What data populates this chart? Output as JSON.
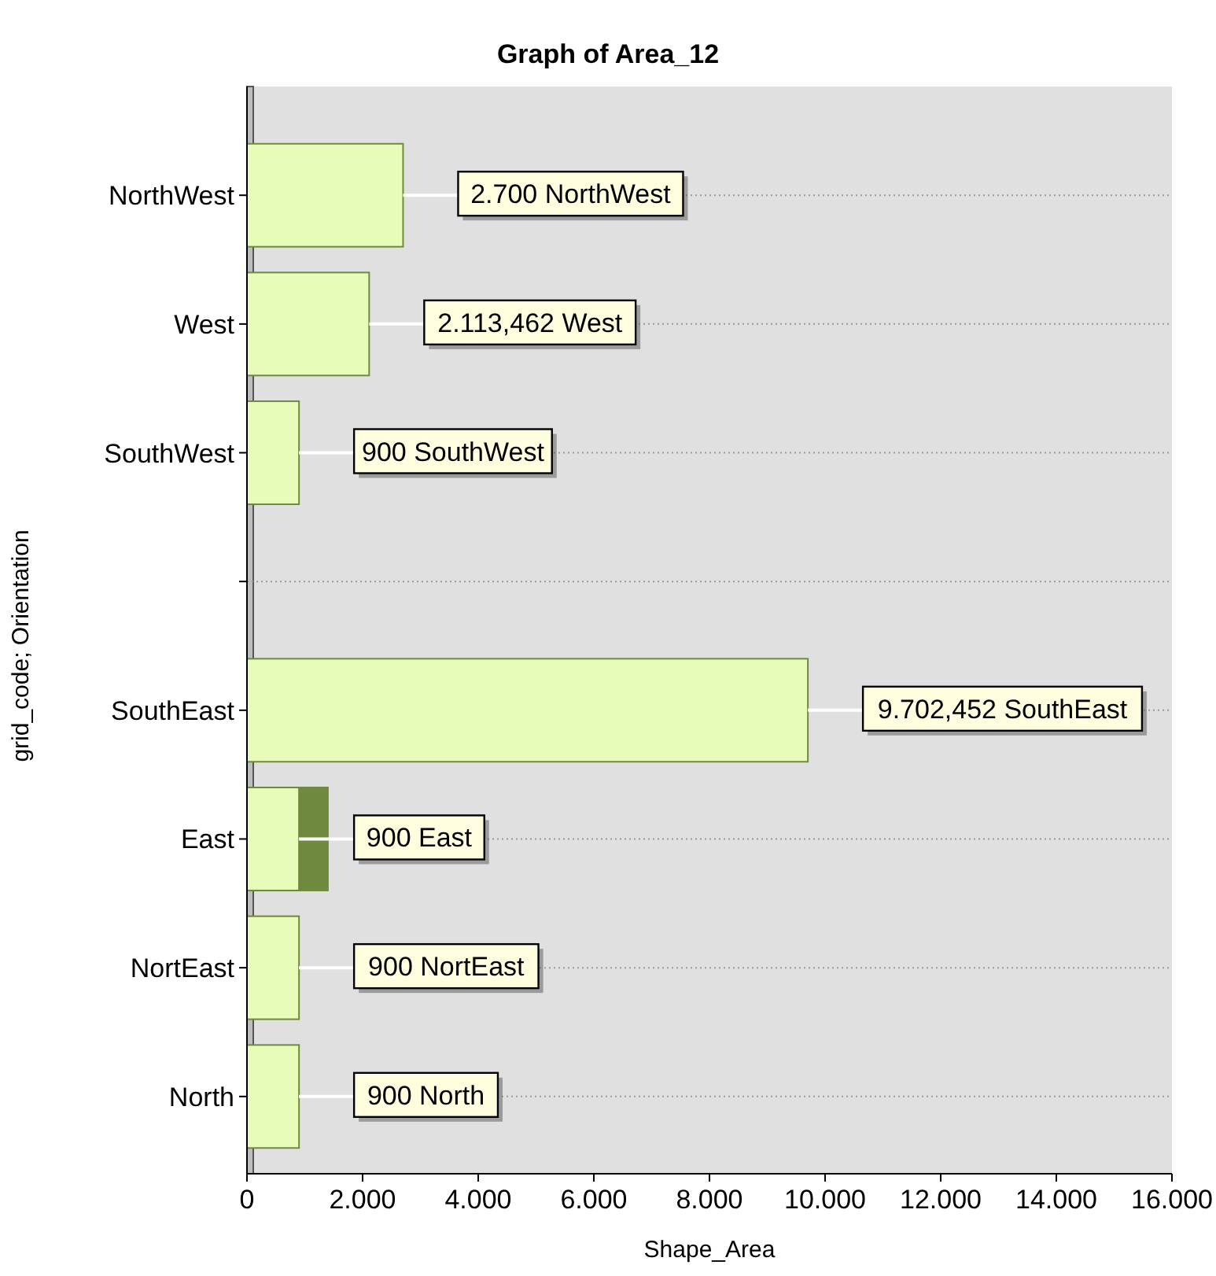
{
  "chart_data": {
    "type": "bar",
    "orientation": "horizontal",
    "title": "Graph of Area_12",
    "xlabel": "Shape_Area",
    "ylabel": "grid_code; Orientation",
    "categories": [
      "NorthWest",
      "West",
      "SouthWest",
      null,
      "SouthEast",
      "East",
      "NortEast",
      "North"
    ],
    "series": [
      {
        "color": "#6f8a3f",
        "values": [
          null,
          null,
          null,
          null,
          null,
          1400,
          null,
          null
        ]
      },
      {
        "color": "#e6fcb8",
        "values": [
          2700,
          2113.462,
          900,
          null,
          9702.452,
          900,
          900,
          900
        ],
        "value_labels": [
          "2.700 NorthWest",
          "2.113,462 West",
          "900 SouthWest",
          null,
          "9.702,452 SouthEast",
          "900 East",
          "900 NortEast",
          "900 North"
        ]
      }
    ],
    "xlim": [
      0,
      16000
    ],
    "xticks": [
      0,
      {
        "value": 2000,
        "label": "2.000"
      },
      {
        "value": 4000,
        "label": "4.000"
      },
      {
        "value": 6000,
        "label": "6.000"
      },
      {
        "value": 8000,
        "label": "8.000"
      },
      {
        "value": 10000,
        "label": "10.000"
      },
      {
        "value": 12000,
        "label": "12.000"
      },
      {
        "value": 14000,
        "label": "14.000"
      },
      {
        "value": 16000,
        "label": "16.000"
      }
    ],
    "grid": "y"
  }
}
